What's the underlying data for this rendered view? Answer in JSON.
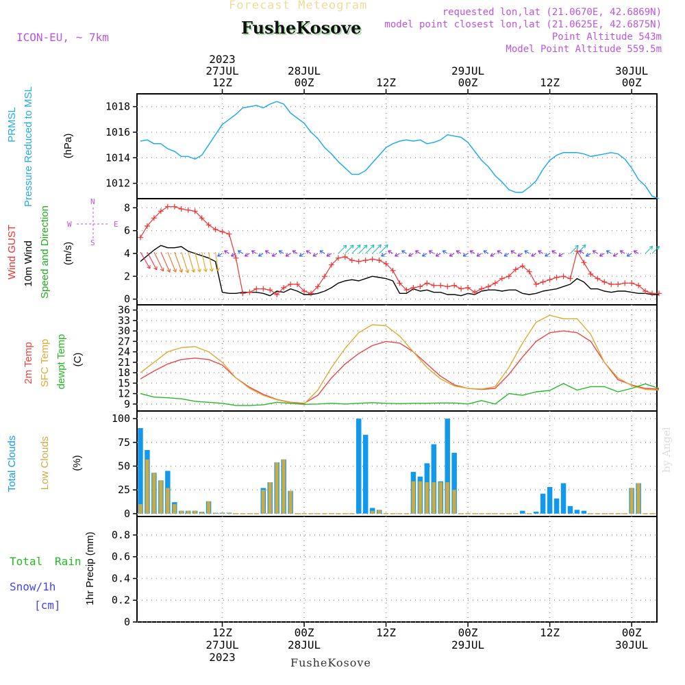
{
  "header": {
    "subtitle": "Forecast Meteogram",
    "location": "FusheKosove",
    "model": "ICON-EU, ~ 7km",
    "requested": "requested lon,lat (21.0670E, 42.6869N)",
    "model_point": "model point closest lon,lat (21.0625E, 42.6875N)",
    "point_altitude": "Point Altitude 543m",
    "model_altitude": "Model Point Altitude 559.5m",
    "footer_location": "FusheKosove",
    "credit": "by Angel"
  },
  "time_axis": {
    "year": "2023",
    "ticks": [
      {
        "hour": 12,
        "time": "12Z",
        "date": "27JUL"
      },
      {
        "hour": 24,
        "time": "00Z",
        "date": "28JUL"
      },
      {
        "hour": 36,
        "time": "12Z",
        "date": ""
      },
      {
        "hour": 48,
        "time": "00Z",
        "date": "29JUL"
      },
      {
        "hour": 60,
        "time": "12Z",
        "date": ""
      },
      {
        "hour": 72,
        "time": "00Z",
        "date": "30JUL"
      }
    ],
    "range_hours": [
      -0.5,
      75.7
    ]
  },
  "colors": {
    "pressure": "#22aaee",
    "gust": "#ee3333",
    "wind": "#000000",
    "wind_dir_label": "#22aa22",
    "temp": "#ee4444",
    "sfc_temp": "#ddaa33",
    "dewpt": "#22bb22",
    "total_cloud": "#1199ee",
    "low_cloud": "#ccaa44",
    "purple": "#bb55dd",
    "rain": "#22bb22",
    "snow": "#4444ee"
  },
  "panel_labels": {
    "pressure": [
      "PRMSL",
      "Pressure Reduced to MSL",
      "(hPa)"
    ],
    "wind": [
      "Wind GUST",
      "10m Wind",
      "Speed and Direction",
      "(m/s)"
    ],
    "compass": {
      "n": "N",
      "s": "S",
      "w": "W",
      "e": "E"
    },
    "temp": [
      "2m Temp",
      "SFC Temp",
      "dewpt Temp",
      "(C)"
    ],
    "cloud": [
      "Total Clouds",
      "Low Clouds",
      "(%)"
    ],
    "precip": [
      "Total",
      "Rain",
      "Snow/1h",
      "[cm]",
      "1hr Precip (mm)"
    ]
  },
  "chart_data": [
    {
      "type": "line",
      "name": "pressure",
      "ylabel": "(hPa)",
      "ylim": [
        1010.8,
        1019
      ],
      "yticks": [
        1012,
        1014,
        1016,
        1018
      ],
      "x_hours": [
        0,
        1,
        2,
        3,
        4,
        5,
        6,
        7,
        8,
        9,
        10,
        11,
        12,
        13,
        14,
        15,
        16,
        17,
        18,
        19,
        20,
        21,
        22,
        23,
        24,
        25,
        26,
        27,
        28,
        29,
        30,
        31,
        32,
        33,
        34,
        35,
        36,
        37,
        38,
        39,
        40,
        41,
        42,
        43,
        44,
        45,
        46,
        47,
        48,
        49,
        50,
        51,
        52,
        53,
        54,
        55,
        56,
        57,
        58,
        59,
        60,
        61,
        62,
        63,
        64,
        65,
        66,
        67,
        68,
        69,
        70,
        71,
        72,
        73,
        74,
        75,
        76
      ],
      "values": [
        1015.3,
        1015.4,
        1015.1,
        1015.1,
        1014.7,
        1014.5,
        1014.1,
        1014.1,
        1013.9,
        1014.2,
        1015.0,
        1015.8,
        1016.6,
        1017.0,
        1017.4,
        1017.9,
        1018.0,
        1018.1,
        1017.9,
        1018.2,
        1018.4,
        1018.2,
        1017.5,
        1017.1,
        1016.7,
        1016.0,
        1015.5,
        1014.8,
        1014.3,
        1013.7,
        1013.2,
        1012.7,
        1012.7,
        1013.0,
        1013.6,
        1014.2,
        1014.8,
        1015.1,
        1015.3,
        1015.4,
        1015.3,
        1015.4,
        1015.1,
        1015.2,
        1015.4,
        1015.8,
        1015.7,
        1015.6,
        1015.2,
        1014.5,
        1013.8,
        1013.3,
        1012.6,
        1012.1,
        1011.5,
        1011.3,
        1011.3,
        1011.7,
        1012.2,
        1013.1,
        1013.8,
        1014.2,
        1014.4,
        1014.4,
        1014.4,
        1014.3,
        1014.1,
        1014.2,
        1014.3,
        1014.4,
        1014.3,
        1013.9,
        1013.2,
        1012.3,
        1011.8,
        1011.0,
        1010.8
      ]
    },
    {
      "type": "line",
      "name": "wind",
      "ylabel": "(m/s)",
      "ylim": [
        -0.5,
        8.8
      ],
      "yticks": [
        0,
        2,
        4,
        6,
        8
      ],
      "x_hours": [
        0,
        1,
        2,
        3,
        4,
        5,
        6,
        7,
        8,
        9,
        10,
        11,
        12,
        13,
        14,
        15,
        16,
        17,
        18,
        19,
        20,
        21,
        22,
        23,
        24,
        25,
        26,
        27,
        28,
        29,
        30,
        31,
        32,
        33,
        34,
        35,
        36,
        37,
        38,
        39,
        40,
        41,
        42,
        43,
        44,
        45,
        46,
        47,
        48,
        49,
        50,
        51,
        52,
        53,
        54,
        55,
        56,
        57,
        58,
        59,
        60,
        61,
        62,
        63,
        64,
        65,
        66,
        67,
        68,
        69,
        70,
        71,
        72,
        73,
        74,
        75,
        76
      ],
      "series": [
        {
          "name": "Wind GUST",
          "values": [
            5.4,
            6.4,
            7.1,
            7.7,
            8.1,
            8.1,
            7.9,
            7.8,
            7.7,
            7.1,
            6.5,
            6.1,
            5.9,
            5.7,
            3.6,
            0.5,
            0.6,
            0.9,
            0.9,
            0.8,
            0.4,
            1.0,
            1.3,
            1.3,
            0.7,
            0.5,
            1.1,
            2.0,
            3.0,
            3.6,
            3.7,
            3.4,
            3.3,
            3.4,
            3.5,
            3.4,
            3.1,
            2.5,
            1.4,
            0.8,
            1.0,
            1.1,
            1.4,
            1.2,
            1.2,
            1.1,
            1.2,
            0.9,
            1.0,
            0.6,
            0.9,
            1.1,
            1.4,
            1.8,
            2.0,
            2.6,
            2.9,
            2.4,
            1.3,
            1.5,
            1.7,
            1.9,
            2.0,
            1.8,
            4.2,
            3.2,
            2.2,
            1.8,
            1.5,
            1.3,
            1.3,
            1.4,
            1.4,
            1.2,
            0.7,
            0.5,
            0.5
          ]
        },
        {
          "name": "10m Wind",
          "values": [
            3.3,
            3.8,
            4.3,
            4.7,
            4.5,
            4.5,
            4.6,
            4.2,
            4.0,
            3.8,
            3.6,
            3.3,
            0.6,
            0.5,
            0.5,
            0.6,
            0.6,
            0.6,
            0.5,
            0.3,
            0.7,
            0.6,
            0.9,
            0.7,
            0.4,
            0.4,
            0.5,
            0.7,
            1.0,
            1.4,
            1.6,
            1.7,
            1.6,
            1.8,
            2.0,
            1.9,
            1.8,
            1.6,
            0.5,
            0.5,
            0.9,
            0.7,
            0.8,
            0.6,
            0.6,
            0.4,
            0.4,
            0.3,
            0.5,
            0.4,
            0.7,
            0.8,
            0.8,
            0.7,
            0.8,
            0.8,
            0.5,
            0.4,
            0.5,
            0.7,
            0.8,
            0.9,
            1.1,
            1.3,
            1.8,
            1.5,
            0.9,
            0.9,
            0.7,
            0.6,
            0.7,
            0.7,
            0.6,
            0.5,
            0.5,
            0.4,
            0.4
          ]
        }
      ]
    },
    {
      "type": "line",
      "name": "temperature",
      "ylabel": "(C)",
      "ylim": [
        7,
        37.5
      ],
      "yticks": [
        9,
        12,
        15,
        18,
        21,
        24,
        27,
        30,
        33,
        36
      ],
      "x_hours": [
        0,
        2,
        4,
        6,
        8,
        10,
        12,
        14,
        16,
        18,
        20,
        22,
        24,
        26,
        28,
        30,
        32,
        34,
        36,
        38,
        40,
        42,
        44,
        46,
        48,
        50,
        52,
        54,
        56,
        58,
        60,
        62,
        64,
        66,
        68,
        70,
        72,
        74,
        76
      ],
      "series": [
        {
          "name": "2m Temp",
          "values": [
            16.2,
            18.5,
            20.5,
            21.8,
            22.2,
            21.8,
            20.2,
            16.5,
            13.8,
            11.8,
            10.3,
            9.5,
            9.2,
            11.5,
            16.5,
            20.5,
            23.5,
            25.8,
            27.0,
            26.5,
            24.0,
            20.5,
            17.0,
            14.5,
            13.5,
            13.2,
            13.5,
            17.5,
            22.5,
            27.0,
            29.5,
            30.0,
            29.5,
            27.0,
            21.0,
            16.0,
            14.5,
            13.5,
            13.3
          ]
        },
        {
          "name": "SFC Temp",
          "values": [
            18.0,
            21.0,
            24.0,
            25.2,
            25.5,
            24.0,
            21.0,
            16.5,
            13.5,
            11.5,
            10.2,
            9.4,
            9.0,
            13.0,
            19.5,
            25.0,
            29.5,
            31.8,
            31.5,
            28.5,
            24.0,
            19.5,
            16.2,
            14.2,
            13.5,
            13.3,
            14.0,
            19.5,
            26.5,
            32.5,
            34.5,
            33.5,
            33.5,
            29.0,
            21.0,
            16.5,
            14.3,
            13.2,
            13.0
          ]
        },
        {
          "name": "dewpt Temp",
          "values": [
            12.0,
            11.0,
            10.8,
            10.5,
            9.8,
            9.5,
            9.2,
            8.6,
            8.6,
            8.8,
            9.5,
            9.2,
            8.9,
            9.0,
            9.2,
            9.0,
            9.2,
            9.4,
            9.2,
            9.1,
            9.2,
            9.2,
            9.3,
            9.3,
            9.0,
            10.0,
            9.0,
            12.0,
            11.5,
            12.5,
            12.9,
            14.9,
            13.0,
            14.0,
            14.0,
            12.5,
            13.5,
            14.8,
            13.5
          ]
        }
      ]
    },
    {
      "type": "bar",
      "name": "clouds",
      "ylabel": "(%)",
      "ylim": [
        -3,
        108
      ],
      "yticks": [
        0,
        25,
        50,
        75,
        100
      ],
      "x_hours": [
        0,
        1,
        2,
        3,
        4,
        5,
        6,
        7,
        8,
        9,
        10,
        11,
        12,
        13,
        14,
        15,
        16,
        17,
        18,
        19,
        20,
        21,
        22,
        23,
        24,
        25,
        26,
        27,
        28,
        29,
        30,
        31,
        32,
        33,
        34,
        35,
        36,
        37,
        38,
        39,
        40,
        41,
        42,
        43,
        44,
        45,
        46,
        47,
        48,
        49,
        50,
        51,
        52,
        53,
        54,
        55,
        56,
        57,
        58,
        59,
        60,
        61,
        62,
        63,
        64,
        65,
        66,
        67,
        68,
        69,
        70,
        71,
        72,
        73,
        74,
        75
      ],
      "series": [
        {
          "name": "Total Clouds",
          "values": [
            90,
            67,
            43,
            35,
            45,
            12,
            3,
            3,
            3,
            2,
            13,
            1,
            1,
            1,
            0,
            0,
            0,
            0,
            27,
            33,
            54,
            57,
            24,
            0,
            0,
            0,
            0,
            0,
            0,
            0,
            0,
            0,
            100,
            83,
            6,
            4,
            0,
            0,
            0,
            0,
            44,
            39,
            53,
            73,
            34,
            100,
            64,
            0,
            0,
            0,
            0,
            0,
            0,
            0,
            0,
            0,
            3,
            0,
            2,
            21,
            28,
            16,
            32,
            8,
            4,
            3,
            0,
            0,
            0,
            0,
            0,
            0,
            27,
            32,
            0,
            0
          ]
        },
        {
          "name": "Low Clouds",
          "values": [
            10,
            57,
            43,
            35,
            27,
            10,
            3,
            3,
            3,
            2,
            13,
            1,
            1,
            1,
            0,
            0,
            0,
            0,
            25,
            33,
            54,
            57,
            24,
            0,
            0,
            0,
            0,
            0,
            0,
            0,
            0,
            0,
            0,
            0,
            3,
            4,
            0,
            0,
            0,
            0,
            34,
            34,
            33,
            33,
            33,
            33,
            25,
            0,
            0,
            0,
            0,
            0,
            0,
            0,
            0,
            0,
            0,
            0,
            0,
            0,
            0,
            0,
            0,
            0,
            0,
            0,
            0,
            0,
            0,
            0,
            0,
            0,
            27,
            32,
            0,
            0
          ]
        }
      ]
    },
    {
      "type": "bar",
      "name": "precipitation",
      "ylabel": "1hr Precip (mm)",
      "ylim": [
        0,
        0.97
      ],
      "yticks": [
        0,
        0.2,
        0.4,
        0.6,
        0.8
      ],
      "series": [
        {
          "name": "Total Rain",
          "values": []
        },
        {
          "name": "Snow/1h",
          "values": []
        }
      ]
    }
  ]
}
